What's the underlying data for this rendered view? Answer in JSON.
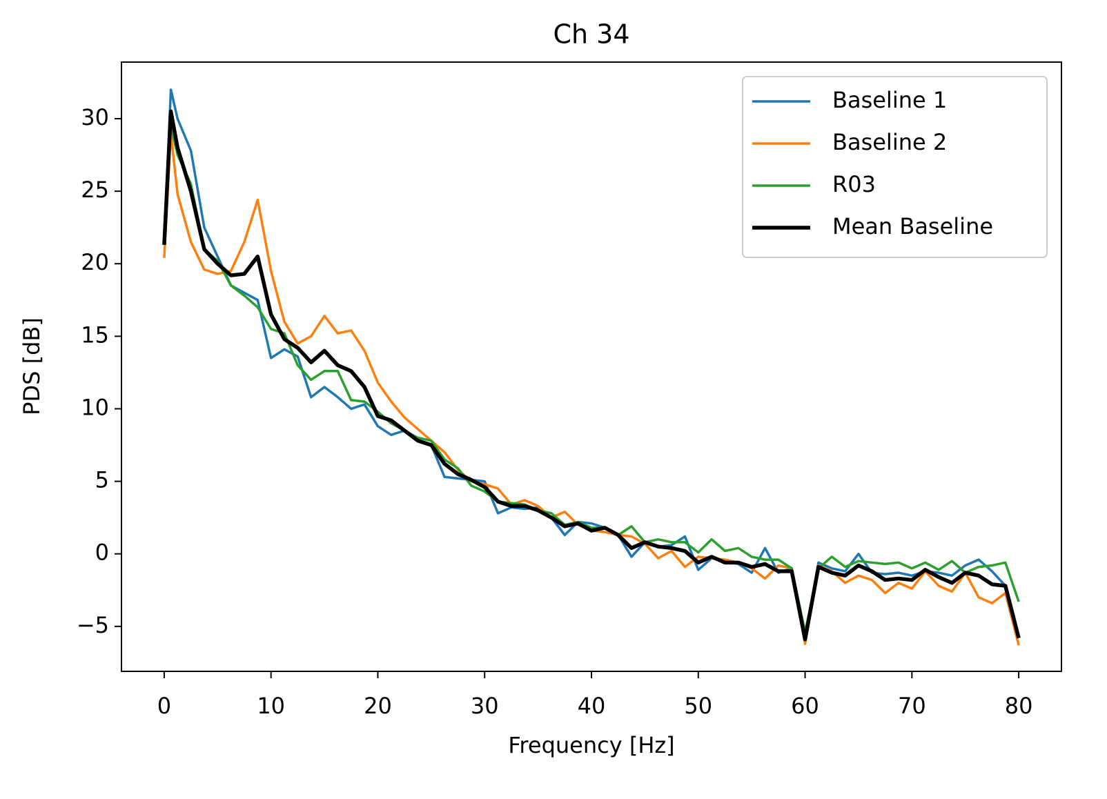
{
  "chart_data": {
    "type": "line",
    "title": "Ch 34",
    "xlabel": "Frequency [Hz]",
    "ylabel": "PDS [dB]",
    "x": [
      0,
      0.625,
      1.25,
      2.5,
      3.75,
      5,
      6.25,
      7.5,
      8.75,
      10,
      11.25,
      12.5,
      13.75,
      15,
      16.25,
      17.5,
      18.75,
      20,
      21.25,
      22.5,
      23.75,
      25,
      26.25,
      27.5,
      28.75,
      30,
      31.25,
      32.5,
      33.75,
      35,
      36.25,
      37.5,
      38.75,
      40,
      41.25,
      42.5,
      43.75,
      45,
      46.25,
      47.5,
      48.75,
      50,
      51.25,
      52.5,
      53.75,
      55,
      56.25,
      57.5,
      58.75,
      60,
      61.25,
      62.5,
      63.75,
      65,
      66.25,
      67.5,
      68.75,
      70,
      71.25,
      72.5,
      73.75,
      75,
      76.25,
      77.5,
      78.75,
      80
    ],
    "series": [
      {
        "name": "Baseline 1",
        "color": "#1f77b4",
        "linewidth": 3.5,
        "values": [
          21.5,
          32,
          30,
          27.8,
          22.5,
          20.5,
          18.5,
          18,
          17.5,
          13.5,
          14.1,
          13.6,
          10.8,
          11.5,
          10.8,
          10,
          10.3,
          8.8,
          8.2,
          8.5,
          7.8,
          7.5,
          5.3,
          5.2,
          5.1,
          5,
          2.8,
          3.2,
          3.1,
          3.2,
          2.5,
          1.3,
          2.2,
          2.1,
          1.8,
          1.3,
          -0.2,
          0.8,
          0.5,
          0.6,
          1.2,
          -1.1,
          -0.3,
          -0.5,
          -0.7,
          -1.3,
          0.4,
          -1.3,
          -1.0,
          -5.9,
          -0.6,
          -1.0,
          -1.2,
          0,
          -1.3,
          -1.4,
          -1.3,
          -1.5,
          -1.2,
          -1.3,
          -1.5,
          -0.8,
          -0.4,
          -1.2,
          -2.2,
          -5.8
        ]
      },
      {
        "name": "Baseline 2",
        "color": "#ff7f0e",
        "linewidth": 3.5,
        "values": [
          20.4,
          29,
          24.8,
          21.5,
          19.6,
          19.3,
          19.5,
          21.5,
          24.4,
          19.5,
          16,
          14.5,
          15,
          16.4,
          15.2,
          15.4,
          14,
          11.8,
          10.5,
          9.4,
          8.6,
          7.8,
          7.0,
          5.8,
          5.0,
          4.8,
          4.5,
          3.4,
          3.7,
          3.3,
          2.5,
          2.9,
          2.0,
          1.6,
          1.5,
          1.3,
          1.2,
          0.7,
          -0.3,
          0.2,
          -0.9,
          -0.2,
          -0.3,
          -0.4,
          -0.6,
          -1.0,
          -1.7,
          -0.8,
          -1.0,
          -6.2,
          -0.8,
          -1.2,
          -2.0,
          -1.5,
          -1.8,
          -2.7,
          -2.0,
          -2.4,
          -1.2,
          -2.2,
          -2.6,
          -1.3,
          -3.0,
          -3.4,
          -2.7,
          -6.3
        ]
      },
      {
        "name": "R03",
        "color": "#2ca02c",
        "linewidth": 3.5,
        "values": [
          21.5,
          29.5,
          27.5,
          25.5,
          21,
          20.2,
          18.5,
          17.8,
          17,
          15.5,
          15.2,
          13,
          12,
          12.6,
          12.6,
          10.6,
          10.5,
          9.8,
          9.0,
          8.5,
          8.0,
          7.8,
          6.5,
          5.9,
          4.7,
          4.3,
          3.6,
          3.5,
          3.4,
          3.0,
          2.8,
          2.0,
          2.2,
          1.8,
          1.8,
          1.3,
          1.9,
          0.8,
          1.0,
          0.8,
          0.8,
          0.1,
          1.0,
          0.2,
          0.4,
          -0.2,
          -0.4,
          -0.4,
          -1.0,
          -5.4,
          -1.0,
          -0.2,
          -0.9,
          -0.5,
          -0.6,
          -0.7,
          -0.6,
          -1.0,
          -0.6,
          -1.1,
          -0.5,
          -1.3,
          -0.9,
          -0.8,
          -0.6,
          -3.3
        ]
      },
      {
        "name": "Mean Baseline",
        "color": "#000000",
        "linewidth": 5.5,
        "values": [
          21.3,
          30.5,
          28,
          25,
          21,
          20,
          19.2,
          19.3,
          20.5,
          16.5,
          14.8,
          14.2,
          13.2,
          14,
          13,
          12.6,
          11.5,
          9.5,
          9.2,
          8.5,
          7.8,
          7.5,
          6.2,
          5.5,
          5.1,
          4.6,
          3.6,
          3.3,
          3.3,
          3,
          2.5,
          1.9,
          2.1,
          1.6,
          1.8,
          1.3,
          0.4,
          0.8,
          0.5,
          0.4,
          0.2,
          -0.6,
          -0.2,
          -0.6,
          -0.6,
          -0.9,
          -0.7,
          -1.2,
          -1.2,
          -5.9,
          -0.9,
          -1.3,
          -1.5,
          -0.8,
          -1.2,
          -1.8,
          -1.7,
          -1.8,
          -1.1,
          -1.6,
          -2.0,
          -1.3,
          -1.5,
          -2.1,
          -2.2,
          -5.8
        ]
      }
    ],
    "xlim": [
      -4,
      84
    ],
    "ylim": [
      -8.1,
      33.9
    ],
    "xticks": [
      0,
      10,
      20,
      30,
      40,
      50,
      60,
      70,
      80
    ],
    "yticks": [
      {
        "value": -5,
        "label": "−5"
      },
      0,
      5,
      10,
      15,
      20,
      25,
      30
    ],
    "legend": "upper right",
    "grid": false
  }
}
